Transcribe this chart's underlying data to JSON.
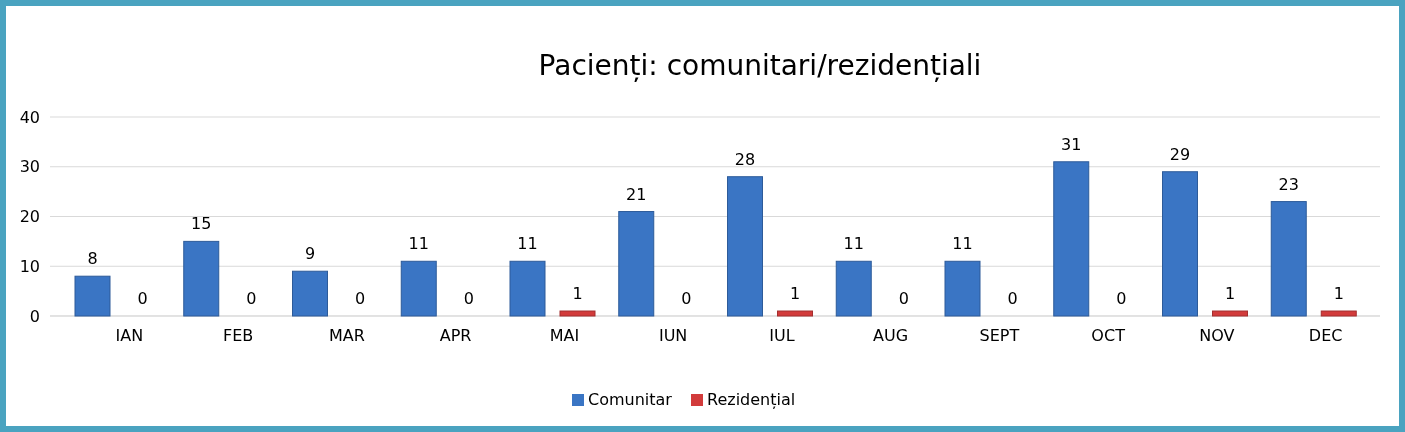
{
  "chart_data": {
    "type": "bar",
    "title": "Pacienți: comunitari/rezidențiali",
    "categories": [
      "IAN",
      "FEB",
      "MAR",
      "APR",
      "MAI",
      "IUN",
      "IUL",
      "AUG",
      "SEPT",
      "OCT",
      "NOV",
      "DEC"
    ],
    "series": [
      {
        "name": "Comunitar",
        "color": "#3a75c4",
        "values": [
          8,
          15,
          9,
          11,
          11,
          21,
          28,
          11,
          11,
          31,
          29,
          23
        ]
      },
      {
        "name": "Rezidențial",
        "color": "#d23b3b",
        "values": [
          0,
          0,
          0,
          0,
          1,
          0,
          1,
          0,
          0,
          0,
          1,
          1
        ]
      }
    ],
    "ylim": [
      0,
      40
    ],
    "yticks": [
      0,
      10,
      20,
      30,
      40
    ],
    "grid": "y",
    "legend": "bottom",
    "data_labels": true
  }
}
